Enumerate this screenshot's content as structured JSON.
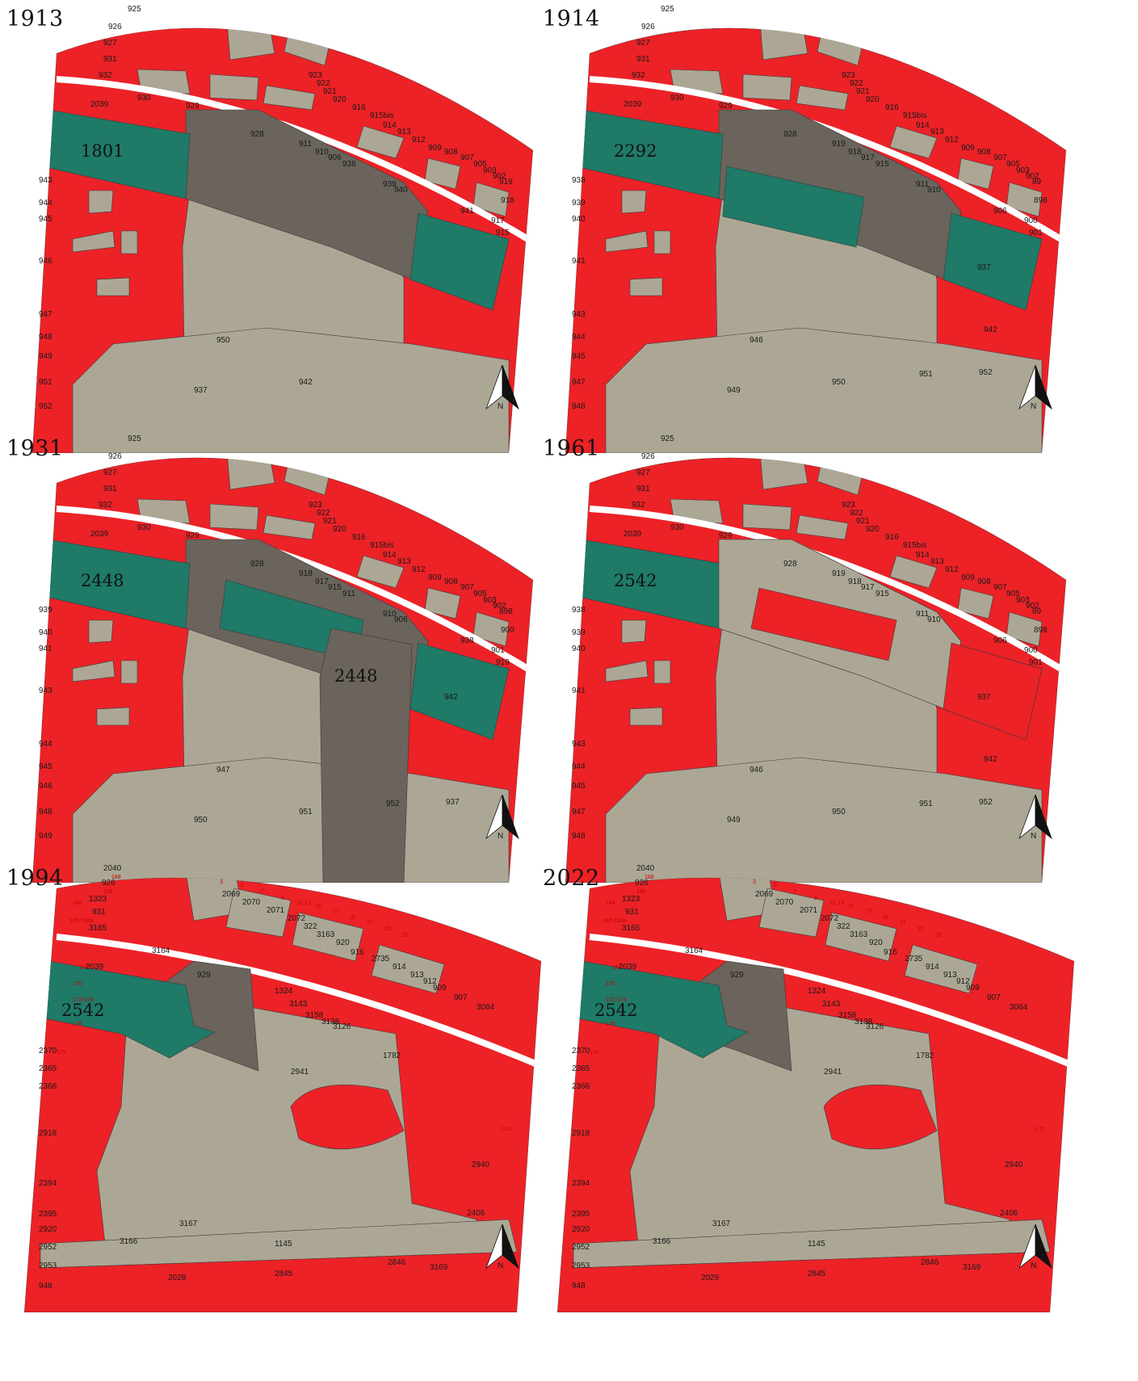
{
  "colors": {
    "red": "#ec2227",
    "beige": "#aca795",
    "teal": "#1f7a68",
    "gray": "#6a645c",
    "line": "#3a3a3a",
    "road": "#ffffff"
  },
  "north_label": "N",
  "panels": [
    {
      "id": "1913",
      "year": "1913",
      "variant": "old",
      "highlight_label": "1801",
      "lot_labels": [
        "925",
        "926",
        "927",
        "931",
        "932",
        "930",
        "929",
        "2039",
        "928",
        "923",
        "922",
        "921",
        "920",
        "916",
        "915bis",
        "914",
        "913",
        "912",
        "909",
        "908",
        "907",
        "905",
        "903",
        "902",
        "919",
        "918",
        "917",
        "915",
        "911",
        "910",
        "906",
        "938",
        "939",
        "940",
        "941",
        "943",
        "944",
        "945",
        "946",
        "947",
        "948",
        "949",
        "950",
        "951",
        "952",
        "937",
        "942"
      ]
    },
    {
      "id": "1914",
      "year": "1914",
      "variant": "old",
      "highlight_label": "2292",
      "lot_labels": [
        "925",
        "926",
        "927",
        "931",
        "932",
        "930",
        "929",
        "2039",
        "928",
        "923",
        "922",
        "921",
        "920",
        "916",
        "915bis",
        "914",
        "913",
        "912",
        "909",
        "908",
        "907",
        "905",
        "903",
        "902",
        "89",
        "898",
        "900",
        "901",
        "919",
        "918",
        "917",
        "915",
        "911",
        "910",
        "906",
        "938",
        "939",
        "940",
        "941",
        "943",
        "944",
        "945",
        "946",
        "947",
        "948",
        "949",
        "950",
        "951",
        "952",
        "937",
        "942"
      ]
    },
    {
      "id": "1931",
      "year": "1931",
      "variant": "old",
      "highlight_label": "2448",
      "secondary_label": "2448",
      "lot_labels": [
        "925",
        "926",
        "927",
        "931",
        "932",
        "930",
        "929",
        "2039",
        "928",
        "923",
        "922",
        "921",
        "920",
        "916",
        "915bis",
        "914",
        "913",
        "912",
        "909",
        "908",
        "907",
        "905",
        "903",
        "902",
        "898",
        "900",
        "901",
        "919",
        "918",
        "917",
        "915",
        "911",
        "910",
        "906",
        "938",
        "939",
        "940",
        "941",
        "943",
        "944",
        "945",
        "946",
        "947",
        "948",
        "949",
        "950",
        "951",
        "952",
        "937",
        "942"
      ]
    },
    {
      "id": "1961",
      "year": "1961",
      "variant": "old",
      "highlight_label": "2542",
      "lot_labels": [
        "925",
        "926",
        "927",
        "931",
        "932",
        "930",
        "929",
        "2039",
        "928",
        "923",
        "922",
        "921",
        "920",
        "916",
        "915bis",
        "914",
        "913",
        "912",
        "909",
        "908",
        "907",
        "905",
        "903",
        "902",
        "89",
        "898",
        "900",
        "901",
        "919",
        "918",
        "917",
        "915",
        "911",
        "910",
        "906",
        "938",
        "939",
        "940",
        "941",
        "943",
        "944",
        "945",
        "946",
        "947",
        "948",
        "949",
        "950",
        "951",
        "952",
        "937",
        "942"
      ]
    },
    {
      "id": "1994",
      "year": "1994",
      "variant": "new",
      "highlight_label": "2542",
      "lot_labels": [
        "2040",
        "926",
        "1323",
        "931",
        "3165",
        "3164",
        "2039",
        "929",
        "2370",
        "2365",
        "2366",
        "2918",
        "2394",
        "2395",
        "2920",
        "2952",
        "2953",
        "948",
        "3166",
        "3167",
        "1145",
        "2029",
        "2845",
        "2846",
        "3169",
        "2406",
        "2940",
        "2941",
        "1324",
        "3143",
        "3158",
        "3138",
        "3126",
        "1782",
        "2069",
        "2070",
        "2071",
        "2072",
        "322",
        "3163",
        "920",
        "916",
        "2735",
        "914",
        "913",
        "912",
        "909",
        "907",
        "3064"
      ],
      "street_numbers": [
        "188",
        "186",
        "164",
        "166-168a",
        "168",
        "170",
        "172-174",
        "176",
        "175",
        "1-21",
        "3",
        "5",
        "7",
        "9",
        "11-13",
        "15",
        "17",
        "19",
        "21",
        "23",
        "25"
      ]
    },
    {
      "id": "2022",
      "year": "2022",
      "variant": "new",
      "highlight_label": "2542",
      "lot_labels": [
        "2040",
        "926",
        "1323",
        "931",
        "3165",
        "3164",
        "2039",
        "929",
        "2370",
        "2365",
        "2366",
        "2918",
        "2394",
        "2395",
        "2920",
        "2952",
        "2953",
        "948",
        "3166",
        "3167",
        "1145",
        "2029",
        "2845",
        "2846",
        "3169",
        "2406",
        "2940",
        "2941",
        "1324",
        "3143",
        "3158",
        "3138",
        "3126",
        "1782",
        "2069",
        "2070",
        "2071",
        "2072",
        "322",
        "3163",
        "920",
        "916",
        "2735",
        "914",
        "913",
        "912",
        "909",
        "907",
        "3064"
      ],
      "street_numbers": [
        "188",
        "186",
        "164",
        "166-168a",
        "168",
        "170",
        "172-174",
        "176",
        "175",
        "1-21",
        "3",
        "5",
        "7",
        "9",
        "11-13",
        "15",
        "17",
        "19",
        "21",
        "23",
        "25"
      ]
    }
  ]
}
